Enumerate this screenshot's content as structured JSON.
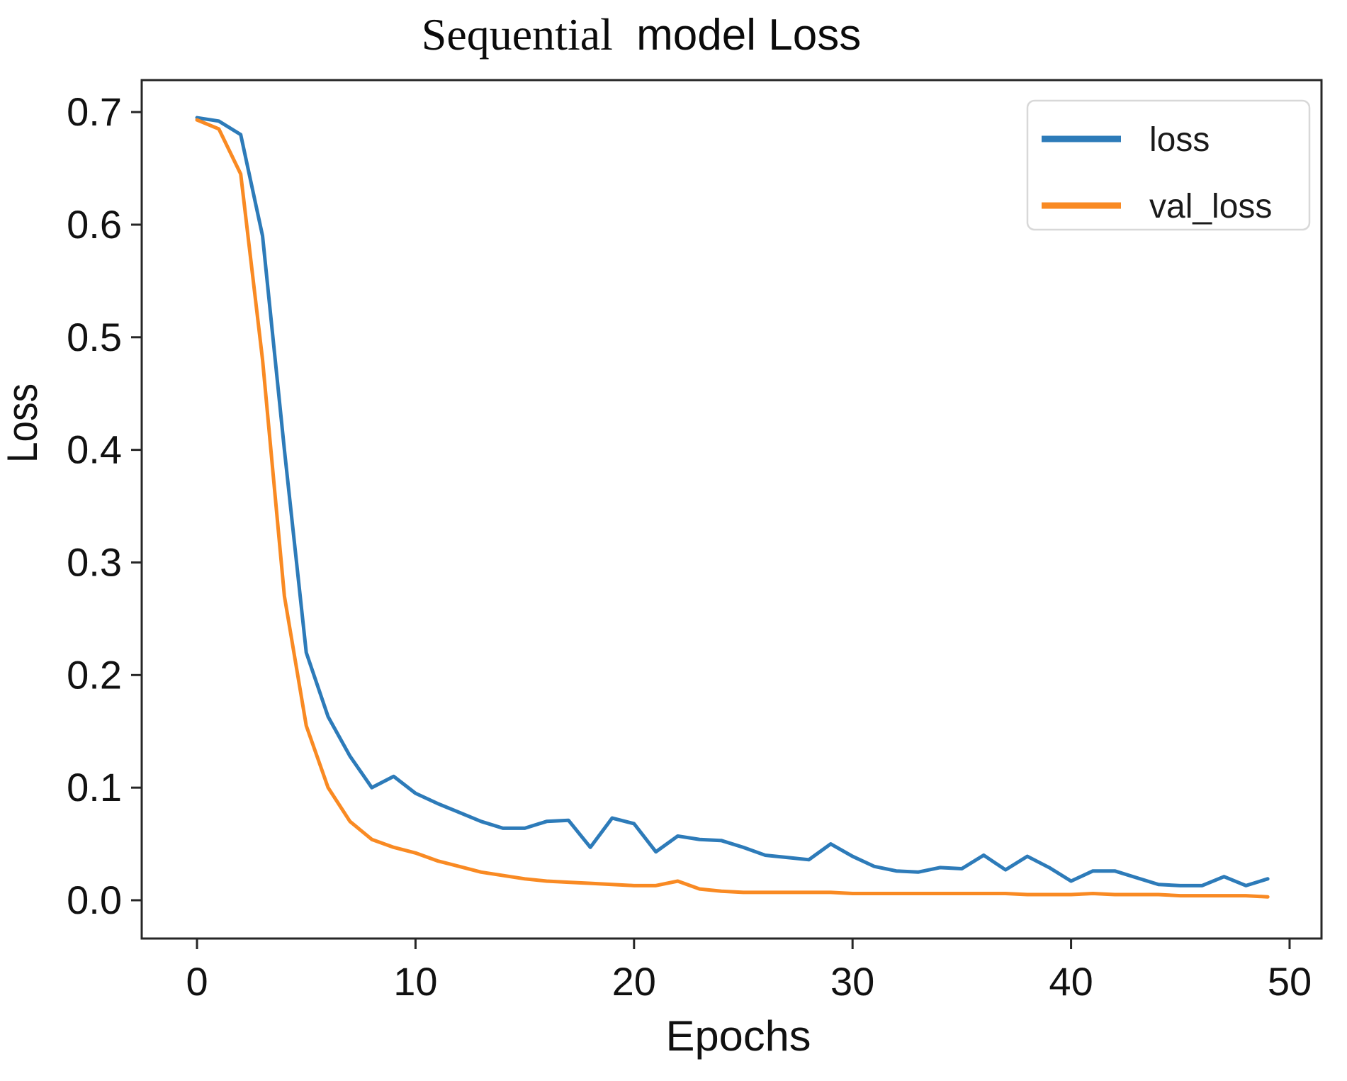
{
  "chart_data": {
    "type": "line",
    "title": "Sequential model Loss",
    "title_parts": [
      "Sequential",
      "model Loss"
    ],
    "xlabel": "Epochs",
    "ylabel": "Loss",
    "x_ticks": [
      0,
      10,
      20,
      30,
      40,
      50
    ],
    "y_ticks": [
      "0.0",
      "0.1",
      "0.2",
      "0.3",
      "0.4",
      "0.5",
      "0.6",
      "0.7"
    ],
    "xlim": [
      -2.53,
      51.46
    ],
    "ylim": [
      -0.034,
      0.7284
    ],
    "grid": false,
    "x_start": 0,
    "x_step": 1,
    "legend": {
      "position": "upper right",
      "entries": [
        "loss",
        "val_loss"
      ]
    },
    "colors": {
      "loss": "#2d7bb9",
      "val_loss": "#f98a23",
      "frame": "#262626",
      "legend_border": "#d8d8d8",
      "text": "#111111"
    },
    "series": [
      {
        "name": "loss",
        "color": "#2d7bb9",
        "values": [
          0.695,
          0.692,
          0.68,
          0.59,
          0.4,
          0.22,
          0.163,
          0.128,
          0.1,
          0.11,
          0.095,
          0.086,
          0.078,
          0.07,
          0.064,
          0.064,
          0.07,
          0.071,
          0.047,
          0.073,
          0.068,
          0.043,
          0.057,
          0.054,
          0.053,
          0.047,
          0.04,
          0.038,
          0.036,
          0.05,
          0.039,
          0.03,
          0.026,
          0.025,
          0.029,
          0.028,
          0.04,
          0.027,
          0.039,
          0.029,
          0.017,
          0.026,
          0.026,
          0.02,
          0.014,
          0.013,
          0.013,
          0.021,
          0.013,
          0.019
        ]
      },
      {
        "name": "val_loss",
        "color": "#f98a23",
        "values": [
          0.693,
          0.685,
          0.645,
          0.48,
          0.27,
          0.155,
          0.1,
          0.07,
          0.054,
          0.047,
          0.042,
          0.035,
          0.03,
          0.025,
          0.022,
          0.019,
          0.017,
          0.016,
          0.015,
          0.014,
          0.013,
          0.013,
          0.017,
          0.01,
          0.008,
          0.007,
          0.007,
          0.007,
          0.007,
          0.007,
          0.006,
          0.006,
          0.006,
          0.006,
          0.006,
          0.006,
          0.006,
          0.006,
          0.005,
          0.005,
          0.005,
          0.006,
          0.005,
          0.005,
          0.005,
          0.004,
          0.004,
          0.004,
          0.004,
          0.003
        ]
      }
    ]
  }
}
